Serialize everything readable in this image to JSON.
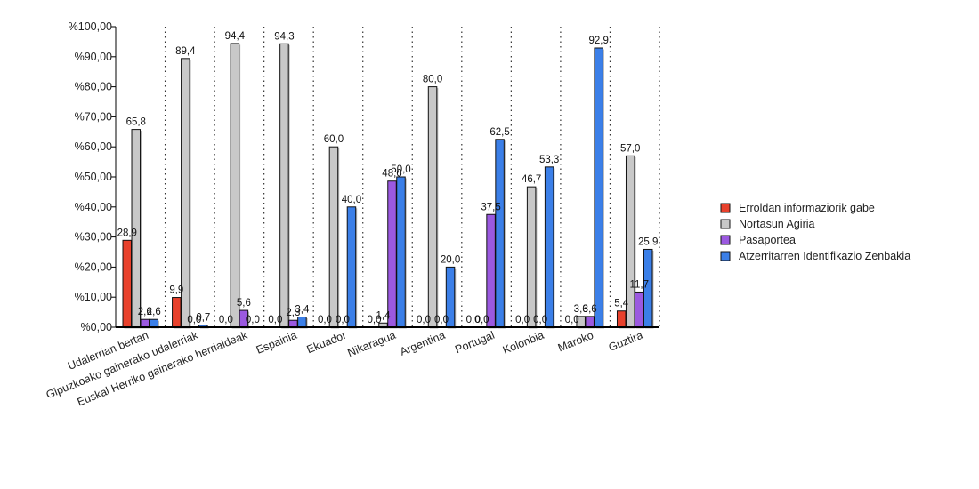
{
  "chart_data": {
    "type": "bar",
    "categories": [
      "Udalerrian bertan",
      "Gipuzkoako gainerako udalerriak",
      "Euskal Herriko gainerako herrialdeak",
      "Espainia",
      "Ekuador",
      "Nikaragua",
      "Argentina",
      "Portugal",
      "Kolonbia",
      "Maroko",
      "Guztira"
    ],
    "series": [
      {
        "name": "Erroldan informaziorik gabe",
        "color": "#e8412c",
        "values": [
          28.9,
          9.9,
          0.0,
          0.0,
          0.0,
          0.0,
          0.0,
          0.0,
          0.0,
          0.0,
          5.4
        ],
        "labels": [
          "28,9",
          "9,9",
          "0,0",
          "0,0",
          "0,0",
          "0,0",
          "0,0",
          "0,0",
          "0,0",
          "0,0",
          "5,4"
        ]
      },
      {
        "name": "Nortasun Agiria",
        "color": "#c8c8c8",
        "values": [
          65.8,
          89.4,
          94.4,
          94.3,
          60.0,
          1.4,
          80.0,
          0.0,
          46.7,
          3.6,
          57.0
        ],
        "labels": [
          "65,8",
          "89,4",
          "94,4",
          "94,3",
          "60,0",
          "1,4",
          "80,0",
          "0,0",
          "46,7",
          "3,6",
          "57,0"
        ]
      },
      {
        "name": "Pasaportea",
        "color": "#9b59e0",
        "values": [
          2.6,
          0.0,
          5.6,
          2.3,
          0.0,
          48.6,
          0.0,
          37.5,
          0.0,
          3.6,
          11.7
        ],
        "labels": [
          "2,6",
          "0,0",
          "5,6",
          "2,3",
          "0,0",
          "48,6",
          "0,0",
          "37,5",
          "0,0",
          "3,6",
          "11,7"
        ]
      },
      {
        "name": "Atzerritarren Identifikazio Zenbakia",
        "color": "#3b7fe8",
        "values": [
          2.6,
          0.7,
          0.0,
          3.4,
          40.0,
          50.0,
          20.0,
          62.5,
          53.3,
          92.9,
          25.9
        ],
        "labels": [
          "2,6",
          "0,7",
          "0,0",
          "3,4",
          "40,0",
          "50,0",
          "20,0",
          "62,5",
          "53,3",
          "92,9",
          "25,9"
        ]
      }
    ],
    "yticks": [
      "%0,00",
      "%10,00",
      "%20,00",
      "%30,00",
      "%40,00",
      "%50,00",
      "%60,00",
      "%70,00",
      "%80,00",
      "%90,00",
      "%100,00"
    ],
    "ylim": [
      0,
      100
    ],
    "grid": "vertical dotted separators between categories",
    "legend": "right"
  }
}
